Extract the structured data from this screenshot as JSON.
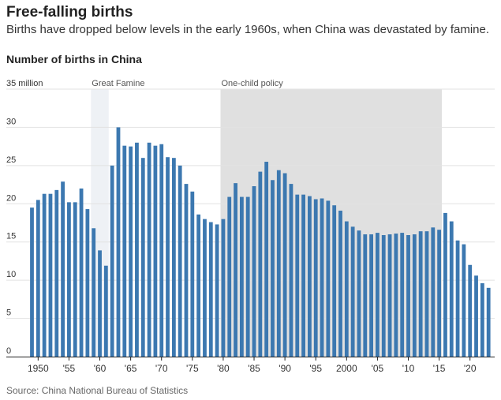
{
  "header": {
    "title": "Free-falling births",
    "subtitle": "Births have dropped below levels in the early 1960s, when China was devastated by famine."
  },
  "footer": {
    "source": "Source: China National Bureau of Statistics"
  },
  "colors": {
    "bar": "#3c78b0",
    "shade_famine": "#eef1f5",
    "shade_policy": "#e0e0e0",
    "grid": "#e2e2e2"
  },
  "chart_data": {
    "type": "bar",
    "title": "Number of births in China",
    "ylim": [
      0,
      35
    ],
    "y_ticks": [
      {
        "value": 35,
        "label": "35 million"
      },
      {
        "value": 30,
        "label": "30"
      },
      {
        "value": 25,
        "label": "25"
      },
      {
        "value": 20,
        "label": "20"
      },
      {
        "value": 15,
        "label": "15"
      },
      {
        "value": 10,
        "label": "10"
      },
      {
        "value": 5,
        "label": "5"
      },
      {
        "value": 0,
        "label": "0"
      }
    ],
    "x_ticks": [
      {
        "year": 1950,
        "label": "1950"
      },
      {
        "year": 1955,
        "label": "'55"
      },
      {
        "year": 1960,
        "label": "'60"
      },
      {
        "year": 1965,
        "label": "'65"
      },
      {
        "year": 1970,
        "label": "'70"
      },
      {
        "year": 1975,
        "label": "'75"
      },
      {
        "year": 1980,
        "label": "'80"
      },
      {
        "year": 1985,
        "label": "'85"
      },
      {
        "year": 1990,
        "label": "'90"
      },
      {
        "year": 1995,
        "label": "'95"
      },
      {
        "year": 2000,
        "label": "2000"
      },
      {
        "year": 2005,
        "label": "'05"
      },
      {
        "year": 2010,
        "label": "'10"
      },
      {
        "year": 2015,
        "label": "'15"
      },
      {
        "year": 2020,
        "label": "'20"
      }
    ],
    "annotations": [
      {
        "label": "Great Famine",
        "start": 1959,
        "end": 1961
      },
      {
        "label": "One-child policy",
        "start": 1980,
        "end": 2015
      }
    ],
    "x": [
      1949,
      1950,
      1951,
      1952,
      1953,
      1954,
      1955,
      1956,
      1957,
      1958,
      1959,
      1960,
      1961,
      1962,
      1963,
      1964,
      1965,
      1966,
      1967,
      1968,
      1969,
      1970,
      1971,
      1972,
      1973,
      1974,
      1975,
      1976,
      1977,
      1978,
      1979,
      1980,
      1981,
      1982,
      1983,
      1984,
      1985,
      1986,
      1987,
      1988,
      1989,
      1990,
      1991,
      1992,
      1993,
      1994,
      1995,
      1996,
      1997,
      1998,
      1999,
      2000,
      2001,
      2002,
      2003,
      2004,
      2005,
      2006,
      2007,
      2008,
      2009,
      2010,
      2011,
      2012,
      2013,
      2014,
      2015,
      2016,
      2017,
      2018,
      2019,
      2020,
      2021,
      2022,
      2023
    ],
    "values": [
      19.5,
      20.5,
      21.3,
      21.3,
      21.8,
      22.9,
      20.2,
      20.2,
      22.0,
      19.3,
      16.8,
      13.9,
      11.9,
      25.0,
      30.0,
      27.6,
      27.5,
      28.0,
      26.0,
      28.0,
      27.6,
      27.8,
      26.1,
      26.0,
      25.0,
      22.6,
      21.6,
      18.6,
      18.0,
      17.6,
      17.3,
      18.0,
      20.9,
      22.7,
      20.9,
      20.9,
      22.3,
      24.2,
      25.5,
      23.1,
      24.4,
      24.0,
      22.6,
      21.2,
      21.2,
      21.0,
      20.6,
      20.7,
      20.4,
      19.8,
      19.1,
      17.7,
      17.0,
      16.5,
      16.0,
      16.0,
      16.2,
      15.9,
      16.0,
      16.1,
      16.2,
      15.9,
      16.0,
      16.4,
      16.4,
      16.9,
      16.6,
      18.8,
      17.7,
      15.2,
      14.7,
      12.0,
      10.6,
      9.6,
      9.0
    ]
  }
}
